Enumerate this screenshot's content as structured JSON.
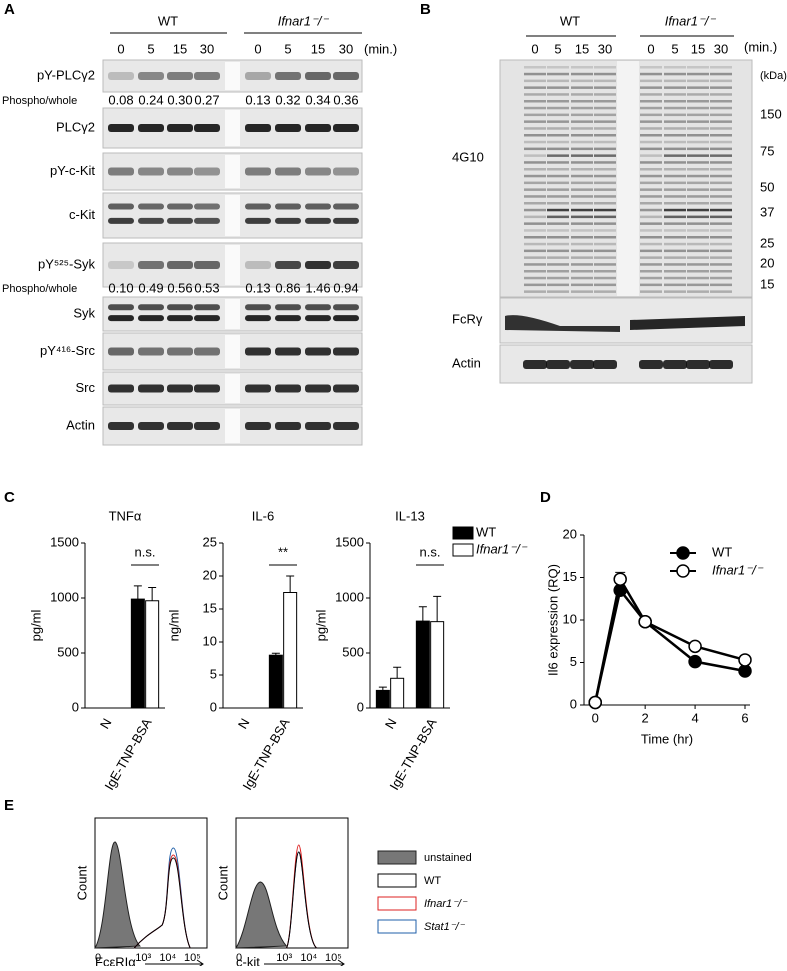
{
  "panel_letters": [
    "A",
    "B",
    "C",
    "D",
    "E"
  ],
  "panel_a": {
    "groups": [
      "WT",
      "Ifnar1⁻/⁻"
    ],
    "times": [
      "0",
      "5",
      "15",
      "30"
    ],
    "unit": "(min.)",
    "rows": [
      "pY-PLCγ2",
      "PLCγ2",
      "pY-c-Kit",
      "c-Kit",
      "pY⁵²⁵-Syk",
      "Syk",
      "pY⁴¹⁶-Src",
      "Src",
      "Actin"
    ],
    "ratios": [
      {
        "label": "Phospho/whole",
        "values": [
          "0.08",
          "0.24",
          "0.30",
          "0.27",
          "0.13",
          "0.32",
          "0.34",
          "0.36"
        ]
      },
      {
        "label": "Phospho/whole",
        "values": [
          "0.10",
          "0.49",
          "0.56",
          "0.53",
          "0.13",
          "0.86",
          "1.46",
          "0.94"
        ]
      }
    ]
  },
  "panel_b": {
    "groups": [
      "WT",
      "Ifnar1⁻/⁻"
    ],
    "times": [
      "0",
      "5",
      "15",
      "30"
    ],
    "unit": "(min.)",
    "kda_unit": "(kDa)",
    "markers": [
      "150",
      "75",
      "50",
      "37",
      "25",
      "20",
      "15"
    ],
    "rows": [
      "4G10",
      "FcRγ",
      "Actin"
    ]
  },
  "chart_data": [
    {
      "type": "bar",
      "title": "TNFα",
      "y_label": "pg/ml",
      "categories": [
        "N",
        "IgE-TNP-BSA"
      ],
      "ylim": [
        0,
        1500
      ],
      "yticks": [
        0,
        500,
        1000,
        1500
      ],
      "annotation": "n.s.",
      "series": [
        {
          "name": "WT",
          "color": "#000000",
          "values": [
            0,
            990
          ],
          "errors": [
            0,
            120
          ]
        },
        {
          "name": "Ifnar1⁻/⁻",
          "color": "#ffffff",
          "values": [
            0,
            975
          ],
          "errors": [
            0,
            120
          ]
        }
      ]
    },
    {
      "type": "bar",
      "title": "IL-6",
      "y_label": "ng/ml",
      "categories": [
        "N",
        "IgE-TNP-BSA"
      ],
      "ylim": [
        0,
        25
      ],
      "yticks": [
        0,
        5,
        10,
        15,
        20,
        25
      ],
      "annotation": "**",
      "series": [
        {
          "name": "WT",
          "color": "#000000",
          "values": [
            0,
            8
          ],
          "errors": [
            0,
            0.3
          ]
        },
        {
          "name": "Ifnar1⁻/⁻",
          "color": "#ffffff",
          "values": [
            0,
            17.5
          ],
          "errors": [
            0,
            2.5
          ]
        }
      ]
    },
    {
      "type": "bar",
      "title": "IL-13",
      "y_label": "pg/ml",
      "categories": [
        "N",
        "IgE-TNP-BSA"
      ],
      "ylim": [
        0,
        1500
      ],
      "yticks": [
        0,
        500,
        1000,
        1500
      ],
      "annotation": "n.s.",
      "legend": "right",
      "series": [
        {
          "name": "WT",
          "color": "#000000",
          "values": [
            160,
            790
          ],
          "errors": [
            30,
            130
          ]
        },
        {
          "name": "Ifnar1⁻/⁻",
          "color": "#ffffff",
          "values": [
            270,
            785
          ],
          "errors": [
            100,
            230
          ]
        }
      ]
    },
    {
      "type": "line",
      "y_label": "Il6 expression (RQ)",
      "x_label": "Time (hr)",
      "x": [
        0,
        1,
        2,
        4,
        6
      ],
      "xlim": [
        -0.45,
        6.2
      ],
      "xticks": [
        0,
        2,
        4,
        6
      ],
      "ylim": [
        0,
        20
      ],
      "yticks": [
        0,
        5,
        10,
        15,
        20
      ],
      "legend": "upper right",
      "series": [
        {
          "name": "WT",
          "color": "#000000",
          "values": [
            0.3,
            13.5,
            9.8,
            5.1,
            4.0
          ],
          "errors": [
            0,
            0.5,
            0,
            0,
            0
          ]
        },
        {
          "name": "Ifnar1⁻/⁻",
          "color": "#ffffff",
          "values": [
            0.3,
            14.8,
            9.8,
            6.9,
            5.3
          ],
          "errors": [
            0,
            0.8,
            0,
            0,
            0
          ]
        }
      ]
    }
  ],
  "panel_e": {
    "y_label": "Count",
    "x_labels": [
      "FcεRIα",
      "c-kit"
    ],
    "ticks": [
      "0",
      "10³",
      "10⁴",
      "10⁵"
    ],
    "legend": [
      "unstained",
      "WT",
      "Ifnar1⁻/⁻",
      "Stat1⁻/⁻"
    ]
  }
}
